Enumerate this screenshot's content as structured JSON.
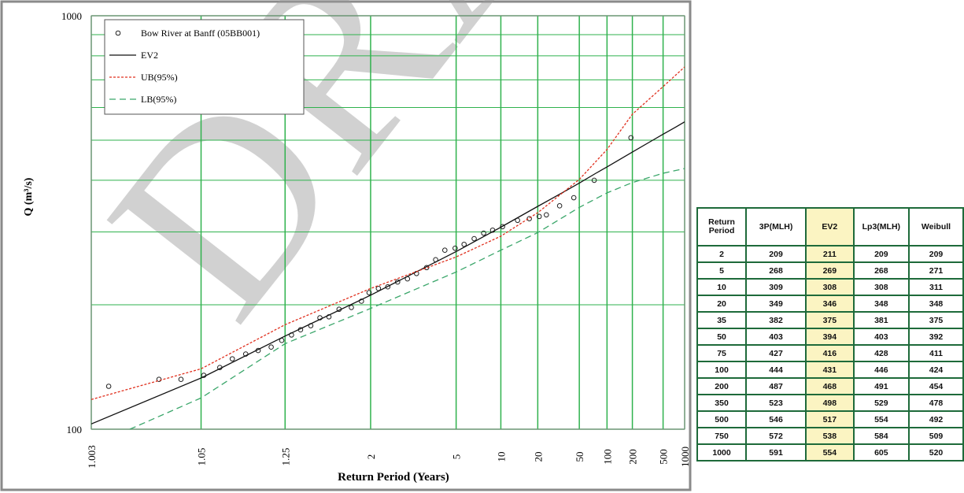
{
  "chart_data": {
    "type": "probability-plot",
    "watermark": "DRAFT",
    "y_label": "Q (m³/s)",
    "x_label": "Return Period  (Years)",
    "x_scale": "normal-probability",
    "y_scale": "log",
    "xlim": [
      1.003,
      1000
    ],
    "ylim": [
      100,
      1000
    ],
    "xticks": [
      1.003,
      1.05,
      1.25,
      2,
      5,
      10,
      20,
      50,
      100,
      200,
      500,
      1000
    ],
    "yticks": [
      100,
      1000
    ],
    "yminor": [
      200,
      300,
      400,
      500,
      600,
      700,
      800,
      900
    ],
    "grid": true,
    "grid_color": "#2fb24d",
    "legend": "top-left",
    "series": [
      {
        "name": "Bow River at Banff (05BB001)",
        "color": "#222222",
        "kind": "points",
        "x": [
          1.005,
          1.019,
          1.032,
          1.053,
          1.074,
          1.095,
          1.123,
          1.155,
          1.196,
          1.236,
          1.279,
          1.325,
          1.385,
          1.447,
          1.517,
          1.608,
          1.739,
          1.866,
          1.976,
          2.13,
          2.31,
          2.53,
          2.79,
          3.07,
          3.44,
          3.83,
          4.3,
          4.93,
          5.59,
          6.49,
          7.52,
          8.7,
          10.3,
          13.5,
          16.9,
          20.6,
          23.9,
          31.8,
          43.9,
          72,
          192
        ],
        "values": [
          127,
          132,
          132,
          135,
          141,
          148,
          152,
          155,
          158,
          164,
          169,
          174,
          178,
          186,
          187,
          195,
          197,
          204,
          214,
          219,
          221,
          227,
          231,
          238,
          246,
          257,
          271,
          274,
          280,
          289,
          298,
          303,
          309,
          320,
          323,
          327,
          330,
          347,
          363,
          400,
          507
        ]
      },
      {
        "name": "EV2",
        "color": "#111111",
        "kind": "solid",
        "x": [
          1.003,
          1.05,
          1.25,
          2,
          5,
          10,
          20,
          35,
          50,
          75,
          100,
          200,
          350,
          500,
          750,
          1000
        ],
        "values": [
          103,
          133,
          168,
          211,
          269,
          308,
          346,
          375,
          394,
          416,
          431,
          468,
          498,
          517,
          538,
          554
        ]
      },
      {
        "name": "UB(95%)",
        "color": "#e0301e",
        "kind": "dotted",
        "x": [
          1.003,
          1.05,
          1.25,
          2,
          5,
          10,
          20,
          50,
          100,
          200,
          500,
          1000
        ],
        "values": [
          118,
          140,
          179,
          219,
          261,
          293,
          334,
          402,
          475,
          578,
          674,
          752
        ]
      },
      {
        "name": "LB(95%)",
        "color": "#3aa66a",
        "kind": "dashed",
        "x": [
          1.009,
          1.05,
          1.25,
          2,
          5,
          10,
          20,
          50,
          100,
          200,
          500,
          1000
        ],
        "values": [
          100,
          119,
          161,
          196,
          240,
          271,
          299,
          344,
          373,
          395,
          416,
          427
        ]
      }
    ]
  },
  "table": {
    "header": [
      "Return Period",
      "3P(MLH)",
      "EV2",
      "Lp3(MLH)",
      "Weibull"
    ],
    "highlight_column": 2,
    "rows": [
      [
        2,
        209,
        211,
        209,
        209
      ],
      [
        5,
        268,
        269,
        268,
        271
      ],
      [
        10,
        309,
        308,
        308,
        311
      ],
      [
        20,
        349,
        346,
        348,
        348
      ],
      [
        35,
        382,
        375,
        381,
        375
      ],
      [
        50,
        403,
        394,
        403,
        392
      ],
      [
        75,
        427,
        416,
        428,
        411
      ],
      [
        100,
        444,
        431,
        446,
        424
      ],
      [
        200,
        487,
        468,
        491,
        454
      ],
      [
        350,
        523,
        498,
        529,
        478
      ],
      [
        500,
        546,
        517,
        554,
        492
      ],
      [
        750,
        572,
        538,
        584,
        509
      ],
      [
        1000,
        591,
        554,
        605,
        520
      ]
    ]
  }
}
